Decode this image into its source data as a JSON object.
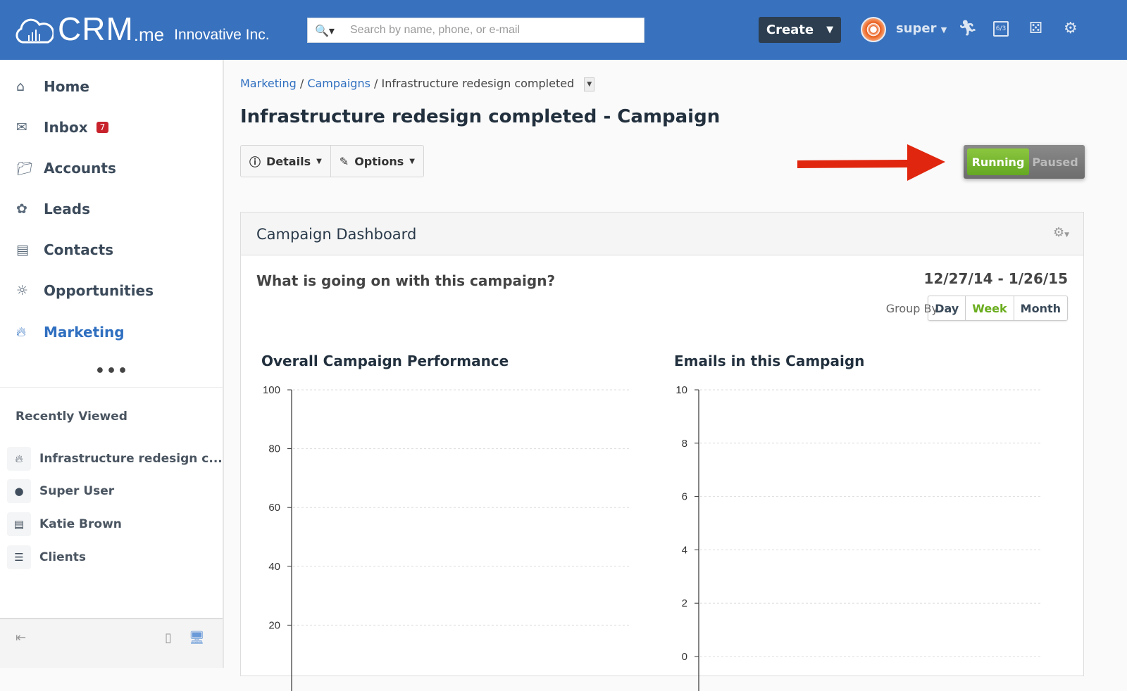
{
  "header": {
    "logo_main": "CRM",
    "logo_suffix": ".me",
    "org": "Innovative Inc.",
    "search_placeholder": "Search by name, phone, or e-mail",
    "search_value": "",
    "create_label": "Create",
    "user": "super",
    "calendar_date": "6/3",
    "brand_color": "#3871bd"
  },
  "sidebar": {
    "items": [
      {
        "label": "Home",
        "icon": "home-icon"
      },
      {
        "label": "Inbox",
        "icon": "envelope-icon",
        "badge": "7"
      },
      {
        "label": "Accounts",
        "icon": "folder-icon"
      },
      {
        "label": "Leads",
        "icon": "sprout-icon"
      },
      {
        "label": "Contacts",
        "icon": "id-card-icon"
      },
      {
        "label": "Opportunities",
        "icon": "lightbulb-icon"
      },
      {
        "label": "Marketing",
        "icon": "flame-icon",
        "active": true
      }
    ],
    "more": "•••",
    "recent_title": "Recently Viewed",
    "recent": [
      {
        "label": "Infrastructure redesign c...",
        "icon": "flame-icon"
      },
      {
        "label": "Super User",
        "icon": "user-icon"
      },
      {
        "label": "Katie Brown",
        "icon": "id-card-icon"
      },
      {
        "label": "Clients",
        "icon": "list-icon"
      }
    ]
  },
  "breadcrumb": {
    "items": [
      "Marketing",
      "Campaigns"
    ],
    "current": "Infrastructure redesign completed",
    "sep": "/"
  },
  "page_title": "Infrastructure redesign completed - Campaign",
  "actions": {
    "details": "Details",
    "options": "Options"
  },
  "status_toggle": {
    "running": "Running",
    "paused": "Paused",
    "selected": "Running",
    "running_color": "#7ab82e"
  },
  "dashboard": {
    "title": "Campaign Dashboard",
    "question": "What is going on with this campaign?",
    "date_range": "12/27/14 - 1/26/15",
    "group_by_label": "Group By",
    "group_by_options": [
      "Day",
      "Week",
      "Month"
    ],
    "group_by_selected": "Week"
  },
  "chart_data": [
    {
      "type": "line",
      "title": "Overall Campaign Performance",
      "xlabel": "",
      "ylabel": "",
      "ylim": [
        0,
        100
      ],
      "yticks": [
        20,
        40,
        60,
        80,
        100
      ],
      "grid": true,
      "series": []
    },
    {
      "type": "line",
      "title": "Emails in this Campaign",
      "xlabel": "",
      "ylabel": "",
      "ylim": [
        0,
        10
      ],
      "yticks": [
        0,
        2,
        4,
        6,
        8,
        10
      ],
      "grid": true,
      "series": []
    }
  ]
}
